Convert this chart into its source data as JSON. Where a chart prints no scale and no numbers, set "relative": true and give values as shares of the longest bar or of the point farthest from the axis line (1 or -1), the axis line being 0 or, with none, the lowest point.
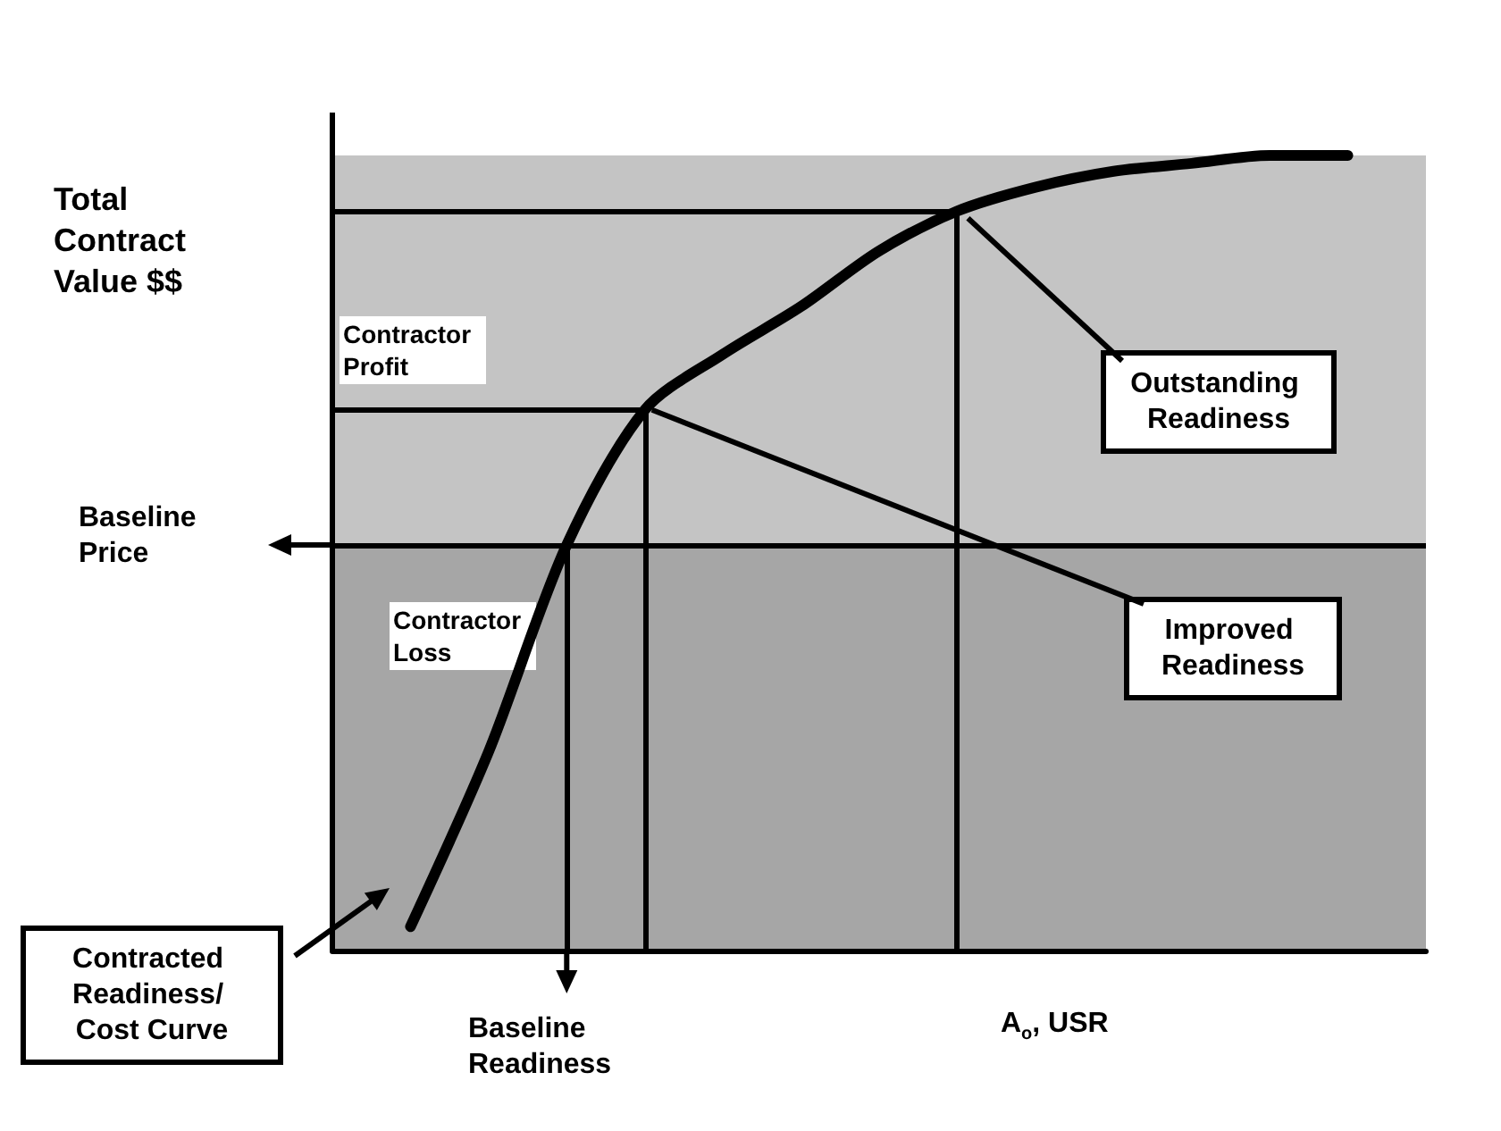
{
  "chart_data": {
    "type": "line",
    "relative": true,
    "xlabel": "A$_{o}$, USR",
    "ylabel": "Total Contract Value $$",
    "categories": [
      null,
      null,
      null,
      null,
      null,
      null,
      null,
      null,
      null,
      null,
      null,
      null,
      null,
      null,
      null
    ],
    "series": [
      {
        "color": "#000000",
        "values": [
          null,
          0.03,
          0.25,
          0.51,
          0.68,
          0.75,
          0.81,
          0.88,
          0.93,
          0.96,
          0.98,
          0.99,
          1,
          1,
          null
        ]
      }
    ],
    "bands": [
      {
        "axis": "y",
        "from": 0.51,
        "to": 1,
        "label": "Contractor Profit",
        "color": "#c4c4c4"
      },
      {
        "axis": "y",
        "from": 0,
        "to": 0.51,
        "label": "Contractor Loss",
        "color": "#a6a6a6"
      }
    ],
    "ref_lines": [
      {
        "axis": "y",
        "value": 0.51,
        "label": "Baseline Price",
        "color": "#000000"
      },
      {
        "axis": "y",
        "value": 0.68,
        "color": "#000000"
      },
      {
        "axis": "y",
        "value": 0.93,
        "color": "#000000"
      }
    ],
    "annotations": [
      "Outstanding Readiness",
      "Improved Readiness",
      "Contracted Readiness/ Cost Curve",
      "Baseline Readiness"
    ],
    "grid": false,
    "marker": "none",
    "line_style": "solid"
  }
}
